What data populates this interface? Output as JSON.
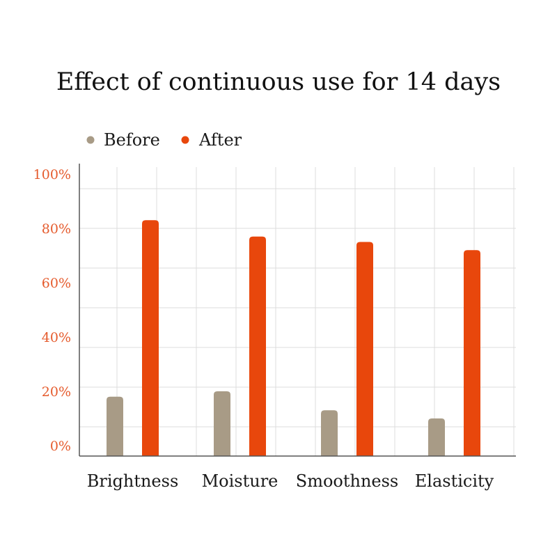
{
  "chart_data": {
    "type": "bar",
    "title": "Effect of continuous use for 14 days",
    "categories": [
      "Brightness",
      "Moisture",
      "Smoothness",
      "Elasticity"
    ],
    "series": [
      {
        "name": "Before",
        "values": [
          18,
          20,
          13,
          10
        ],
        "color": "#a89b86"
      },
      {
        "name": "After",
        "values": [
          83,
          77,
          75,
          72
        ],
        "color": "#e8470c"
      }
    ],
    "ylim": [
      0,
      100
    ],
    "y_ticks": [
      {
        "value": 100,
        "label": "100%"
      },
      {
        "value": 80,
        "label": "80%"
      },
      {
        "value": 60,
        "label": "60%"
      },
      {
        "value": 40,
        "label": "40%"
      },
      {
        "value": 20,
        "label": "20%"
      },
      {
        "value": 0,
        "label": "0%"
      }
    ],
    "tick_label_color": "#e55b2d",
    "grid": true,
    "legend_position": "top-left"
  }
}
